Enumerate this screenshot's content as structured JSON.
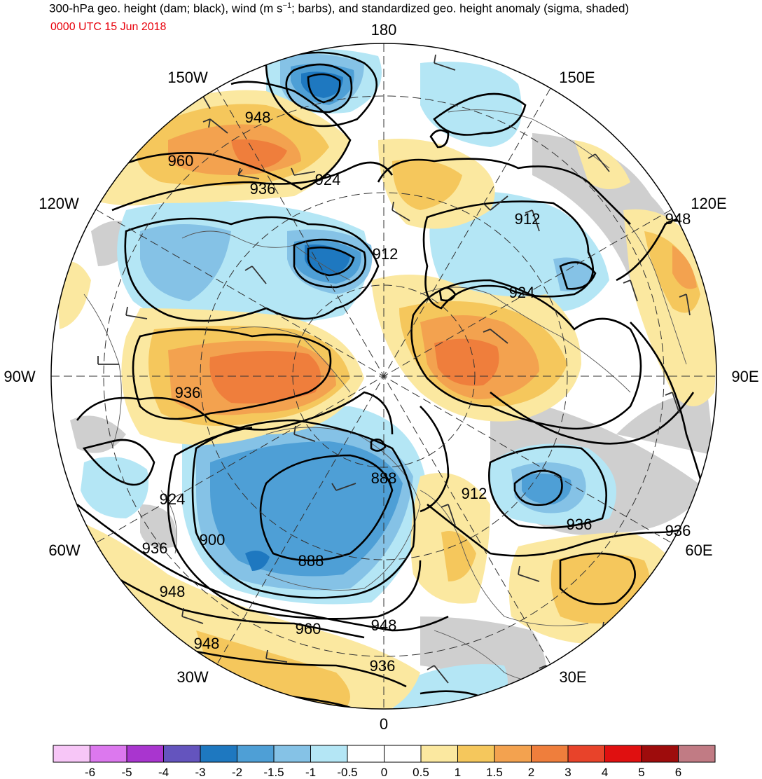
{
  "header": {
    "title_main": "300-hPa geo. height (dam; black), wind (m s",
    "title_sup": "−1",
    "title_rest": "; barbs), and standardized geo. height anomaly (sigma, shaded)",
    "valid_time": "0000 UTC 15 Jun 2018"
  },
  "map": {
    "projection": "north-polar-stereographic",
    "meridian_labels": [
      {
        "id": "180",
        "text": "180"
      },
      {
        "id": "150E",
        "text": "150E"
      },
      {
        "id": "120E",
        "text": "120E"
      },
      {
        "id": "90E",
        "text": "90E"
      },
      {
        "id": "60E",
        "text": "60E"
      },
      {
        "id": "30E",
        "text": "30E"
      },
      {
        "id": "0",
        "text": "0"
      },
      {
        "id": "30W",
        "text": "30W"
      },
      {
        "id": "60W",
        "text": "60W"
      },
      {
        "id": "90W",
        "text": "90W"
      },
      {
        "id": "120W",
        "text": "120W"
      },
      {
        "id": "150W",
        "text": "150W"
      }
    ],
    "contour_labels": [
      {
        "id": "c948a",
        "text": "948"
      },
      {
        "id": "c960a",
        "text": "960"
      },
      {
        "id": "c936a",
        "text": "936"
      },
      {
        "id": "c924a",
        "text": "924"
      },
      {
        "id": "c912a",
        "text": "912"
      },
      {
        "id": "c912b",
        "text": "912"
      },
      {
        "id": "c948b",
        "text": "948"
      },
      {
        "id": "c924b",
        "text": "924"
      },
      {
        "id": "c936b",
        "text": "936"
      },
      {
        "id": "c888a",
        "text": "888"
      },
      {
        "id": "c912c",
        "text": "912"
      },
      {
        "id": "c924c",
        "text": "924"
      },
      {
        "id": "c936c",
        "text": "936"
      },
      {
        "id": "c900",
        "text": "900"
      },
      {
        "id": "c936d",
        "text": "936"
      },
      {
        "id": "c888b",
        "text": "888"
      },
      {
        "id": "c936e",
        "text": "936"
      },
      {
        "id": "c948c",
        "text": "948"
      },
      {
        "id": "c948d",
        "text": "948"
      },
      {
        "id": "c960b",
        "text": "960"
      },
      {
        "id": "c948e",
        "text": "948"
      },
      {
        "id": "c936f",
        "text": "936"
      }
    ]
  },
  "colorbar": {
    "unit": "sigma",
    "ticks": [
      "-6",
      "-5",
      "-4",
      "-3",
      "-2",
      "-1.5",
      "-1",
      "-0.5",
      "0",
      "0.5",
      "1",
      "1.5",
      "2",
      "3",
      "4",
      "5",
      "6"
    ],
    "colors": [
      "#f7c6f7",
      "#dc78ee",
      "#a935cf",
      "#6454be",
      "#1e78c0",
      "#4e9fd6",
      "#85c2e6",
      "#b4e6f5",
      "#ffffff",
      "#ffffff",
      "#fbe8a0",
      "#f5c75c",
      "#f3a24f",
      "#ef7e3c",
      "#e8432a",
      "#e01010",
      "#9e0c0c",
      "#c17b84"
    ]
  }
}
